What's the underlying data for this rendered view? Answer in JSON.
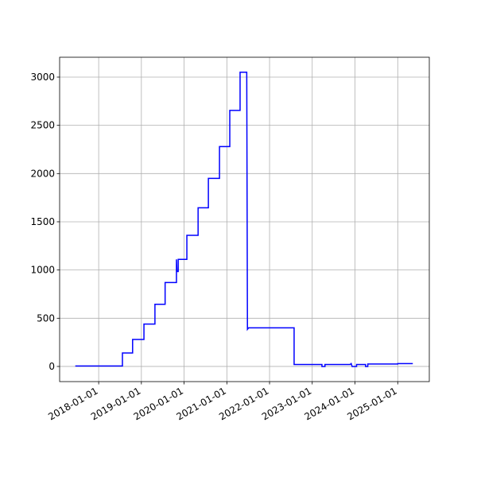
{
  "chart_data": {
    "type": "line",
    "x": [
      "2017-06-15",
      "2018-07-23",
      "2018-07-23",
      "2018-10-18",
      "2018-10-18",
      "2019-01-23",
      "2019-01-23",
      "2019-04-27",
      "2019-04-27",
      "2019-07-23",
      "2019-07-23",
      "2019-10-28",
      "2019-10-28",
      "2019-11-01",
      "2019-11-12",
      "2019-11-12",
      "2020-01-25",
      "2020-01-25",
      "2020-04-30",
      "2020-04-30",
      "2020-07-27",
      "2020-07-27",
      "2020-10-30",
      "2020-10-30",
      "2021-01-26",
      "2021-01-26",
      "2021-04-24",
      "2021-04-24",
      "2021-06-20",
      "2021-06-26",
      "2021-07-05",
      "2022-07-30",
      "2022-07-30",
      "2023-03-25",
      "2023-03-25",
      "2023-04-20",
      "2023-04-20",
      "2023-11-20",
      "2023-11-30",
      "2023-12-08",
      "2024-01-15",
      "2024-01-15",
      "2024-04-01",
      "2024-04-01",
      "2024-04-20",
      "2024-04-20",
      "2025-01-01",
      "2025-01-01",
      "2025-05-10"
    ],
    "series": [
      {
        "color": "#0000ff",
        "values": [
          5,
          5,
          140,
          140,
          280,
          280,
          440,
          440,
          645,
          645,
          870,
          870,
          1110,
          985,
          985,
          1110,
          1110,
          1360,
          1360,
          1645,
          1645,
          1950,
          1950,
          2280,
          2280,
          2655,
          2655,
          3050,
          3050,
          385,
          400,
          400,
          20,
          20,
          0,
          0,
          20,
          20,
          30,
          0,
          0,
          20,
          20,
          0,
          0,
          25,
          25,
          30,
          30
        ]
      }
    ],
    "xlim": [
      "2017-02-01",
      "2025-09-28"
    ],
    "xticks": [
      "2018-01-01",
      "2019-01-01",
      "2020-01-01",
      "2021-01-01",
      "2022-01-01",
      "2023-01-01",
      "2024-01-01",
      "2025-01-01"
    ],
    "ylim": [
      -157,
      3206
    ],
    "yticks": [
      0,
      500,
      1000,
      1500,
      2000,
      2500,
      3000
    ],
    "grid": true
  }
}
